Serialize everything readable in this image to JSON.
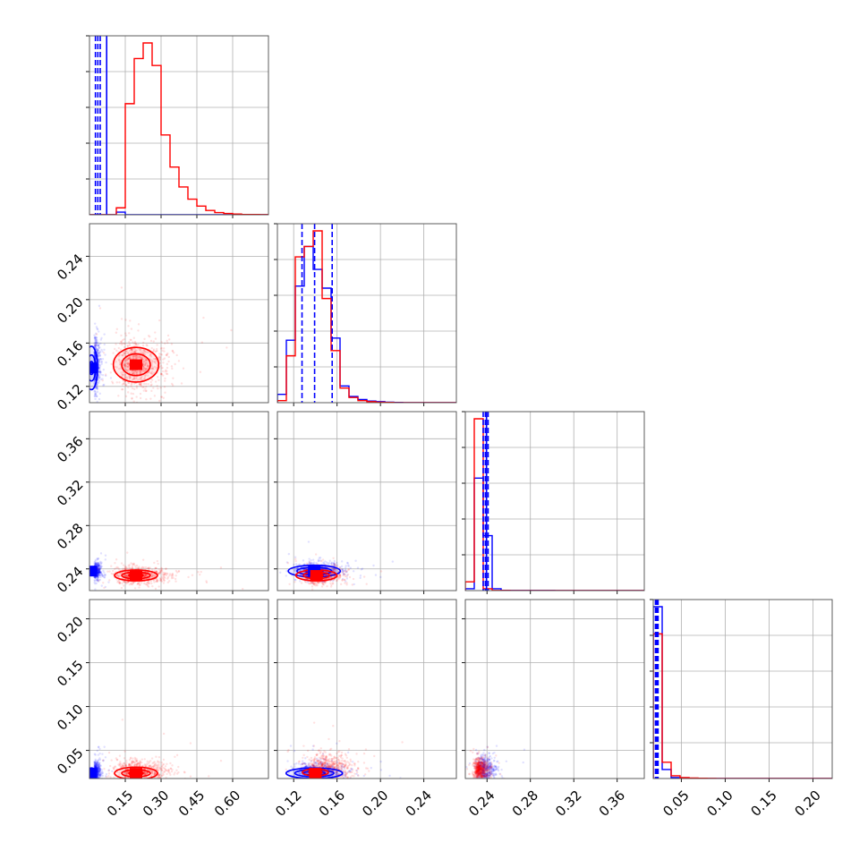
{
  "chart_data": {
    "type": "corner",
    "grid": true,
    "colors": {
      "a": "#0000ff",
      "b": "#ff0000"
    },
    "x_ticks": [
      {
        "values": [
          0.15,
          0.3,
          0.45,
          0.6
        ],
        "labels": [
          "0.15",
          "0.30",
          "0.45",
          "0.60"
        ]
      },
      {
        "values": [
          0.12,
          0.16,
          0.2,
          0.24
        ],
        "labels": [
          "0.12",
          "0.16",
          "0.20",
          "0.24"
        ]
      },
      {
        "values": [
          0.24,
          0.28,
          0.32,
          0.36
        ],
        "labels": [
          "0.24",
          "0.28",
          "0.32",
          "0.36"
        ]
      },
      {
        "values": [
          0.05,
          0.1,
          0.15,
          0.2
        ],
        "labels": [
          "0.05",
          "0.10",
          "0.15",
          "0.20"
        ]
      }
    ],
    "y_ticks": [
      null,
      {
        "values": [
          0.12,
          0.16,
          0.2,
          0.24
        ],
        "labels": [
          "0.12",
          "0.16",
          "0.20",
          "0.24"
        ]
      },
      {
        "values": [
          0.24,
          0.28,
          0.32,
          0.36
        ],
        "labels": [
          "0.24",
          "0.28",
          "0.32",
          "0.36"
        ]
      },
      {
        "values": [
          0.05,
          0.1,
          0.15,
          0.2
        ],
        "labels": [
          "0.05",
          "0.10",
          "0.15",
          "0.20"
        ]
      }
    ],
    "ranges": [
      [
        0.0,
        0.75
      ],
      [
        0.105,
        0.27
      ],
      [
        0.22,
        0.385
      ],
      [
        0.018,
        0.222
      ]
    ],
    "histograms": [
      {
        "edges": [
          0.0,
          0.0375,
          0.075,
          0.1125,
          0.15,
          0.1875,
          0.225,
          0.2625,
          0.3,
          0.3375,
          0.375,
          0.4125,
          0.45,
          0.4875,
          0.525,
          0.5625,
          0.6,
          0.6375,
          0.675,
          0.7125,
          0.75
        ],
        "series": [
          {
            "name": "a",
            "counts": [
              0,
              0,
              0,
              3,
              0,
              0,
              0,
              0,
              0,
              0,
              0,
              0,
              0,
              0,
              0,
              0,
              0,
              0,
              0,
              0
            ]
          },
          {
            "name": "b",
            "counts": [
              0,
              0,
              0,
              8,
              128,
              180,
              198,
              172,
              92,
              55,
              32,
              18,
              10,
              5,
              2.5,
              1.5,
              0.8,
              0.3,
              0.3,
              0.2
            ]
          }
        ],
        "vlines": [
          {
            "x": 0.025,
            "style": "dashed"
          },
          {
            "x": 0.035,
            "style": "dashed"
          },
          {
            "x": 0.045,
            "style": "dashed"
          },
          {
            "x": 0.072,
            "style": "solid"
          }
        ]
      },
      {
        "edges": [
          0.105,
          0.11325,
          0.1215,
          0.12975,
          0.138,
          0.14625,
          0.1545,
          0.16275,
          0.171,
          0.17925,
          0.1875,
          0.19575,
          0.204,
          0.21225,
          0.2205,
          0.22875,
          0.237,
          0.24525,
          0.2535,
          0.26175,
          0.27
        ],
        "series": [
          {
            "name": "a",
            "counts": [
              8,
              60,
              112,
              150,
              128,
              110,
              62,
              16,
              6,
              3,
              1.5,
              1,
              0.5,
              0.3,
              0,
              0,
              0,
              0,
              0,
              0
            ]
          },
          {
            "name": "b",
            "counts": [
              2,
              45,
              140,
              150,
              165,
              100,
              50,
              14,
              5,
              2,
              1,
              0.5,
              0.3,
              0,
              0,
              0,
              0,
              0,
              0,
              0
            ]
          }
        ],
        "vlines": [
          {
            "x": 0.1277,
            "style": "dashed"
          },
          {
            "x": 0.1393,
            "style": "dashed"
          },
          {
            "x": 0.1555,
            "style": "dashed"
          }
        ]
      },
      {
        "edges": [
          0.22,
          0.22825,
          0.2365,
          0.24475,
          0.253,
          0.26125,
          0.2695,
          0.27775,
          0.286,
          0.29425,
          0.3025,
          0.31075,
          0.319,
          0.32725,
          0.3355,
          0.34375,
          0.352,
          0.36025,
          0.3685,
          0.37675,
          0.385
        ],
        "series": [
          {
            "name": "a",
            "counts": [
              3,
              180,
              88,
              3,
              0.5,
              0.3,
              0.3,
              0.2,
              0.2,
              0.2,
              0.1,
              0.1,
              0.1,
              0.1,
              0.1,
              0,
              0,
              0,
              0,
              0
            ]
          },
          {
            "name": "b",
            "counts": [
              14,
              275,
              3,
              0.3,
              0.2,
              0.1,
              0.1,
              0.1,
              0.1,
              0,
              0,
              0,
              0,
              0,
              0,
              0,
              0,
              0,
              0,
              0
            ]
          }
        ],
        "vlines": [
          {
            "x": 0.2365,
            "style": "dashed"
          },
          {
            "x": 0.2385,
            "style": "dashed"
          },
          {
            "x": 0.241,
            "style": "dashed"
          },
          {
            "x": 0.2395,
            "style": "solid"
          }
        ]
      },
      {
        "edges": [
          0.018,
          0.0282,
          0.0384,
          0.0486,
          0.0588,
          0.069,
          0.0792,
          0.0894,
          0.0996,
          0.1098,
          0.12,
          0.1302,
          0.1404,
          0.1506,
          0.1608,
          0.171,
          0.1812,
          0.1914,
          0.2016,
          0.2118,
          0.222
        ],
        "series": [
          {
            "name": "a",
            "counts": [
              190,
              10,
              1,
              0.5,
              0.3,
              0.2,
              0.1,
              0.1,
              0.1,
              0,
              0,
              0,
              0,
              0,
              0,
              0,
              0,
              0,
              0,
              0
            ]
          },
          {
            "name": "b",
            "counts": [
              160,
              18,
              3,
              1,
              0.5,
              0.3,
              0.2,
              0.1,
              0.1,
              0.1,
              0,
              0,
              0,
              0,
              0,
              0,
              0,
              0,
              0,
              0
            ]
          }
        ],
        "vlines": [
          {
            "x": 0.0205,
            "style": "dashed"
          },
          {
            "x": 0.0215,
            "style": "dashed"
          },
          {
            "x": 0.0225,
            "style": "dashed"
          },
          {
            "x": 0.0235,
            "style": "dashed"
          }
        ]
      }
    ],
    "scatter_panels": [
      {
        "row": 1,
        "col": 0,
        "clouds": [
          {
            "name": "a",
            "cx": 0.02,
            "cy": 0.14,
            "sx": 0.012,
            "sy": 0.012,
            "n": 500
          },
          {
            "name": "b",
            "cx": 0.2,
            "cy": 0.14,
            "sx": 0.07,
            "sy": 0.012,
            "n": 700
          }
        ],
        "contours": [
          {
            "name": "a",
            "cx": 0.008,
            "cy": 0.137,
            "rx": [
              0.01,
              0.018,
              0.026
            ],
            "ry": [
              0.006,
              0.012,
              0.02
            ]
          },
          {
            "name": "b",
            "cx": 0.195,
            "cy": 0.14,
            "rx": [
              0.025,
              0.06,
              0.095
            ],
            "ry": [
              0.004,
              0.01,
              0.016
            ]
          }
        ],
        "cores": [
          {
            "name": "a",
            "cx": 0.005,
            "cy": 0.137
          },
          {
            "name": "b",
            "cx": 0.195,
            "cy": 0.14
          }
        ]
      },
      {
        "row": 2,
        "col": 0,
        "clouds": [
          {
            "name": "a",
            "cx": 0.02,
            "cy": 0.238,
            "sx": 0.012,
            "sy": 0.004,
            "n": 450
          },
          {
            "name": "b",
            "cx": 0.2,
            "cy": 0.234,
            "sx": 0.07,
            "sy": 0.004,
            "n": 700
          }
        ],
        "contours": [
          {
            "name": "a",
            "cx": 0.008,
            "cy": 0.238,
            "rx": [
              0.01,
              0.018
            ],
            "ry": [
              0.002,
              0.004
            ]
          },
          {
            "name": "b",
            "cx": 0.195,
            "cy": 0.234,
            "rx": [
              0.03,
              0.06,
              0.09
            ],
            "ry": [
              0.0015,
              0.003,
              0.005
            ]
          }
        ],
        "cores": [
          {
            "name": "a",
            "cx": 0.005,
            "cy": 0.238
          },
          {
            "name": "b",
            "cx": 0.195,
            "cy": 0.234
          }
        ]
      },
      {
        "row": 2,
        "col": 1,
        "clouds": [
          {
            "name": "a",
            "cx": 0.14,
            "cy": 0.238,
            "sx": 0.013,
            "sy": 0.004,
            "n": 650
          },
          {
            "name": "b",
            "cx": 0.143,
            "cy": 0.234,
            "sx": 0.011,
            "sy": 0.004,
            "n": 650
          }
        ],
        "contours": [
          {
            "name": "a",
            "cx": 0.139,
            "cy": 0.238,
            "rx": [
              0.008,
              0.016,
              0.024
            ],
            "ry": [
              0.0015,
              0.0035,
              0.0055
            ]
          },
          {
            "name": "b",
            "cx": 0.141,
            "cy": 0.234,
            "rx": [
              0.006,
              0.012,
              0.019
            ],
            "ry": [
              0.0015,
              0.003,
              0.005
            ]
          }
        ],
        "cores": [
          {
            "name": "a",
            "cx": 0.139,
            "cy": 0.238
          },
          {
            "name": "b",
            "cx": 0.141,
            "cy": 0.234
          }
        ]
      },
      {
        "row": 3,
        "col": 0,
        "clouds": [
          {
            "name": "a",
            "cx": 0.02,
            "cy": 0.025,
            "sx": 0.012,
            "sy": 0.006,
            "n": 450
          },
          {
            "name": "b",
            "cx": 0.2,
            "cy": 0.026,
            "sx": 0.07,
            "sy": 0.006,
            "n": 700
          }
        ],
        "contours": [
          {
            "name": "a",
            "cx": 0.008,
            "cy": 0.024,
            "rx": [
              0.01,
              0.018
            ],
            "ry": [
              0.003,
              0.006
            ]
          },
          {
            "name": "b",
            "cx": 0.195,
            "cy": 0.024,
            "rx": [
              0.03,
              0.06,
              0.09
            ],
            "ry": [
              0.002,
              0.004,
              0.007
            ]
          }
        ],
        "cores": [
          {
            "name": "a",
            "cx": 0.005,
            "cy": 0.024
          },
          {
            "name": "b",
            "cx": 0.195,
            "cy": 0.024
          }
        ]
      },
      {
        "row": 3,
        "col": 1,
        "clouds": [
          {
            "name": "a",
            "cx": 0.14,
            "cy": 0.025,
            "sx": 0.014,
            "sy": 0.006,
            "n": 600
          },
          {
            "name": "b",
            "cx": 0.15,
            "cy": 0.03,
            "sx": 0.014,
            "sy": 0.008,
            "n": 650
          }
        ],
        "contours": [
          {
            "name": "a",
            "cx": 0.139,
            "cy": 0.024,
            "rx": [
              0.01,
              0.018,
              0.026
            ],
            "ry": [
              0.002,
              0.004,
              0.006
            ]
          },
          {
            "name": "b",
            "cx": 0.14,
            "cy": 0.025,
            "rx": [
              0.006,
              0.012
            ],
            "ry": [
              0.002,
              0.004
            ]
          }
        ],
        "cores": [
          {
            "name": "b",
            "cx": 0.14,
            "cy": 0.024
          }
        ]
      },
      {
        "row": 3,
        "col": 2,
        "clouds": [
          {
            "name": "a",
            "cx": 0.238,
            "cy": 0.028,
            "sx": 0.006,
            "sy": 0.008,
            "n": 500
          },
          {
            "name": "b",
            "cx": 0.233,
            "cy": 0.028,
            "sx": 0.004,
            "sy": 0.006,
            "n": 650
          }
        ],
        "contours": [],
        "cores": []
      }
    ]
  }
}
